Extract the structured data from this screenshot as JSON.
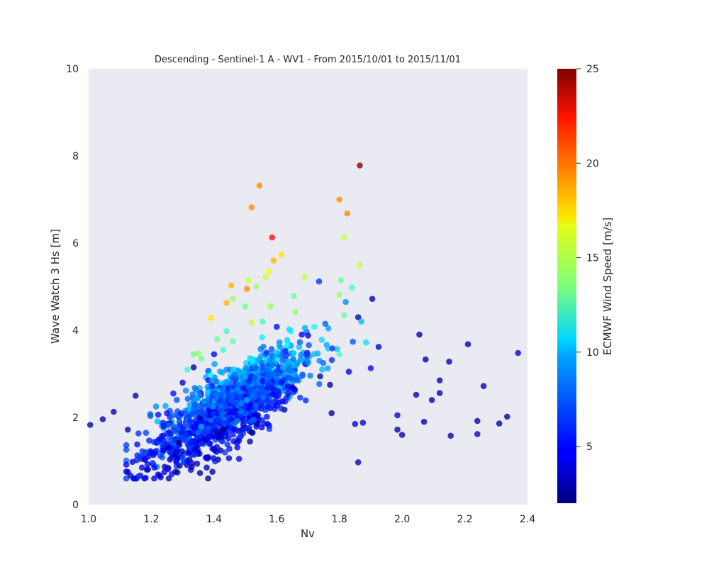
{
  "chart_data": {
    "type": "scatter",
    "title": "Descending - Sentinel-1 A - WV1 - From 2015/10/01 to 2015/11/01",
    "xlabel": "Nv",
    "ylabel": "Wave Watch 3 Hs [m]",
    "xlim": [
      1.0,
      2.4
    ],
    "ylim": [
      0,
      10
    ],
    "xticks": [
      "1.0",
      "1.2",
      "1.4",
      "1.6",
      "1.8",
      "2.0",
      "2.2",
      "2.4"
    ],
    "yticks": [
      "0",
      "2",
      "4",
      "6",
      "8",
      "10"
    ],
    "grid": false,
    "background_color": "#eaeaf2",
    "colormap": "jet",
    "colorbar": {
      "label": "ECMWF Wind Speed [m/s]",
      "range": [
        2,
        25
      ],
      "ticks": [
        "5",
        "10",
        "15",
        "20",
        "25"
      ]
    },
    "points": [
      {
        "x": 1.005,
        "y": 1.83,
        "c": 3
      },
      {
        "x": 1.045,
        "y": 1.96,
        "c": 3
      },
      {
        "x": 1.08,
        "y": 2.13,
        "c": 3
      },
      {
        "x": 1.125,
        "y": 1.72,
        "c": 3
      },
      {
        "x": 1.15,
        "y": 2.5,
        "c": 3
      },
      {
        "x": 1.125,
        "y": 0.75,
        "c": 4
      },
      {
        "x": 1.14,
        "y": 0.98,
        "c": 4
      },
      {
        "x": 1.155,
        "y": 1.38,
        "c": 5
      },
      {
        "x": 1.17,
        "y": 0.85,
        "c": 4
      },
      {
        "x": 1.18,
        "y": 1.05,
        "c": 5
      },
      {
        "x": 1.2,
        "y": 1.2,
        "c": 5
      },
      {
        "x": 1.21,
        "y": 0.85,
        "c": 5
      },
      {
        "x": 1.215,
        "y": 2.25,
        "c": 8
      },
      {
        "x": 1.23,
        "y": 0.63,
        "c": 4
      },
      {
        "x": 1.23,
        "y": 1.5,
        "c": 5
      },
      {
        "x": 1.24,
        "y": 1.8,
        "c": 5
      },
      {
        "x": 1.25,
        "y": 2.1,
        "c": 5
      },
      {
        "x": 1.26,
        "y": 1.2,
        "c": 6
      },
      {
        "x": 1.27,
        "y": 2.55,
        "c": 5
      },
      {
        "x": 1.28,
        "y": 1.0,
        "c": 5
      },
      {
        "x": 1.29,
        "y": 1.9,
        "c": 6
      },
      {
        "x": 1.3,
        "y": 2.8,
        "c": 4
      },
      {
        "x": 1.31,
        "y": 1.6,
        "c": 6
      },
      {
        "x": 1.315,
        "y": 3.1,
        "c": 12
      },
      {
        "x": 1.33,
        "y": 0.95,
        "c": 4
      },
      {
        "x": 1.335,
        "y": 3.45,
        "c": 13
      },
      {
        "x": 1.335,
        "y": 3.15,
        "c": 3
      },
      {
        "x": 1.35,
        "y": 3.47,
        "c": 14
      },
      {
        "x": 1.36,
        "y": 3.35,
        "c": 13
      },
      {
        "x": 1.34,
        "y": 2.3,
        "c": 7
      },
      {
        "x": 1.36,
        "y": 1.4,
        "c": 6
      },
      {
        "x": 1.38,
        "y": 2.7,
        "c": 8
      },
      {
        "x": 1.39,
        "y": 4.28,
        "c": 17
      },
      {
        "x": 1.4,
        "y": 3.45,
        "c": 5
      },
      {
        "x": 1.41,
        "y": 3.8,
        "c": 13
      },
      {
        "x": 1.42,
        "y": 2.4,
        "c": 6
      },
      {
        "x": 1.43,
        "y": 3.55,
        "c": 12
      },
      {
        "x": 1.44,
        "y": 4.63,
        "c": 18
      },
      {
        "x": 1.44,
        "y": 3.98,
        "c": 12
      },
      {
        "x": 1.455,
        "y": 5.03,
        "c": 18
      },
      {
        "x": 1.46,
        "y": 4.72,
        "c": 14
      },
      {
        "x": 1.46,
        "y": 3.75,
        "c": 13
      },
      {
        "x": 1.47,
        "y": 2.9,
        "c": 7
      },
      {
        "x": 1.48,
        "y": 1.05,
        "c": 4
      },
      {
        "x": 1.5,
        "y": 4.55,
        "c": 13
      },
      {
        "x": 1.505,
        "y": 4.95,
        "c": 19
      },
      {
        "x": 1.51,
        "y": 5.15,
        "c": 15
      },
      {
        "x": 1.52,
        "y": 6.82,
        "c": 19
      },
      {
        "x": 1.52,
        "y": 4.18,
        "c": 15
      },
      {
        "x": 1.535,
        "y": 5.0,
        "c": 14
      },
      {
        "x": 1.545,
        "y": 7.32,
        "c": 19
      },
      {
        "x": 1.555,
        "y": 4.2,
        "c": 12
      },
      {
        "x": 1.565,
        "y": 5.22,
        "c": 15
      },
      {
        "x": 1.575,
        "y": 5.35,
        "c": 16
      },
      {
        "x": 1.58,
        "y": 4.55,
        "c": 14
      },
      {
        "x": 1.585,
        "y": 6.13,
        "c": 22
      },
      {
        "x": 1.59,
        "y": 5.6,
        "c": 18
      },
      {
        "x": 1.6,
        "y": 4.08,
        "c": 5
      },
      {
        "x": 1.615,
        "y": 5.73,
        "c": 17
      },
      {
        "x": 1.62,
        "y": 3.15,
        "c": 9
      },
      {
        "x": 1.64,
        "y": 4.02,
        "c": 10
      },
      {
        "x": 1.655,
        "y": 4.78,
        "c": 13
      },
      {
        "x": 1.66,
        "y": 4.42,
        "c": 14
      },
      {
        "x": 1.68,
        "y": 3.9,
        "c": 4
      },
      {
        "x": 1.69,
        "y": 5.22,
        "c": 15
      },
      {
        "x": 1.7,
        "y": 3.88,
        "c": 4
      },
      {
        "x": 1.72,
        "y": 4.08,
        "c": 11
      },
      {
        "x": 1.735,
        "y": 5.12,
        "c": 6
      },
      {
        "x": 1.745,
        "y": 3.1,
        "c": 9
      },
      {
        "x": 1.755,
        "y": 4.15,
        "c": 7
      },
      {
        "x": 1.77,
        "y": 2.75,
        "c": 3
      },
      {
        "x": 1.775,
        "y": 2.1,
        "c": 3
      },
      {
        "x": 1.8,
        "y": 7.0,
        "c": 19
      },
      {
        "x": 1.8,
        "y": 4.82,
        "c": 14
      },
      {
        "x": 1.805,
        "y": 5.15,
        "c": 13
      },
      {
        "x": 1.8,
        "y": 3.45,
        "c": 12
      },
      {
        "x": 1.815,
        "y": 6.13,
        "c": 15
      },
      {
        "x": 1.815,
        "y": 4.35,
        "c": 13
      },
      {
        "x": 1.82,
        "y": 4.65,
        "c": 8
      },
      {
        "x": 1.825,
        "y": 6.68,
        "c": 19
      },
      {
        "x": 1.83,
        "y": 3.05,
        "c": 4
      },
      {
        "x": 1.84,
        "y": 4.98,
        "c": 12
      },
      {
        "x": 1.86,
        "y": 4.3,
        "c": 3
      },
      {
        "x": 1.865,
        "y": 7.78,
        "c": 25
      },
      {
        "x": 1.865,
        "y": 5.5,
        "c": 15
      },
      {
        "x": 1.87,
        "y": 4.2,
        "c": 9
      },
      {
        "x": 1.875,
        "y": 1.88,
        "c": 4
      },
      {
        "x": 1.885,
        "y": 3.72,
        "c": 10
      },
      {
        "x": 1.9,
        "y": 3.13,
        "c": 5
      },
      {
        "x": 1.905,
        "y": 4.72,
        "c": 3
      },
      {
        "x": 1.925,
        "y": 3.62,
        "c": 4
      },
      {
        "x": 1.86,
        "y": 0.97,
        "c": 3
      },
      {
        "x": 1.85,
        "y": 1.85,
        "c": 4
      },
      {
        "x": 1.985,
        "y": 2.05,
        "c": 4
      },
      {
        "x": 1.985,
        "y": 1.72,
        "c": 3
      },
      {
        "x": 2.0,
        "y": 1.6,
        "c": 3
      },
      {
        "x": 2.045,
        "y": 2.52,
        "c": 3
      },
      {
        "x": 2.055,
        "y": 3.9,
        "c": 3
      },
      {
        "x": 2.07,
        "y": 1.9,
        "c": 3
      },
      {
        "x": 2.075,
        "y": 3.33,
        "c": 3
      },
      {
        "x": 2.095,
        "y": 2.4,
        "c": 3
      },
      {
        "x": 2.12,
        "y": 2.85,
        "c": 3
      },
      {
        "x": 2.12,
        "y": 2.56,
        "c": 3
      },
      {
        "x": 2.15,
        "y": 3.28,
        "c": 3
      },
      {
        "x": 2.155,
        "y": 1.58,
        "c": 3
      },
      {
        "x": 2.21,
        "y": 3.68,
        "c": 3
      },
      {
        "x": 2.24,
        "y": 1.92,
        "c": 3
      },
      {
        "x": 2.24,
        "y": 1.62,
        "c": 4
      },
      {
        "x": 2.26,
        "y": 2.72,
        "c": 3
      },
      {
        "x": 2.31,
        "y": 1.86,
        "c": 3
      },
      {
        "x": 2.335,
        "y": 2.02,
        "c": 3
      },
      {
        "x": 2.37,
        "y": 3.48,
        "c": 4
      }
    ],
    "dense_cluster": {
      "count": 1400,
      "x_mean": 1.45,
      "x_sd": 0.12,
      "y_slope": 4.2,
      "y_intercept_at_x1": 0.35,
      "y_noise_sd": 0.4,
      "x_range": [
        1.12,
        1.85
      ],
      "y_range": [
        0.6,
        4.5
      ]
    }
  }
}
